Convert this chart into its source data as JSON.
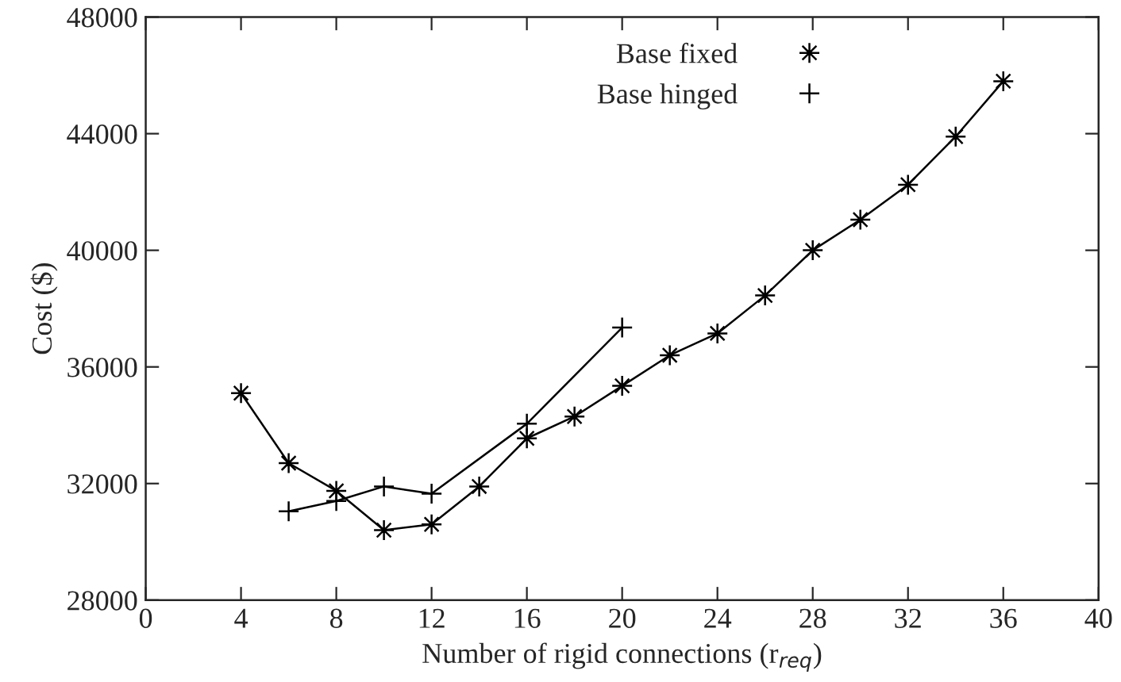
{
  "chart_data": {
    "type": "line",
    "xlabel": "Number of rigid connections (r$_{req}$)",
    "ylabel": "Cost ($)",
    "xlim": [
      0,
      40
    ],
    "xticks": [
      0,
      4,
      8,
      12,
      16,
      20,
      24,
      28,
      32,
      36,
      40
    ],
    "ylim": [
      28000,
      48000
    ],
    "yticks": [
      28000,
      32000,
      36000,
      40000,
      44000,
      48000
    ],
    "grid": false,
    "legend": "top right",
    "series": [
      {
        "name": "Base fixed",
        "color": "#000000",
        "marker": "star",
        "x": [
          4,
          6,
          8,
          10,
          12,
          14,
          16,
          18,
          20,
          22,
          24,
          26,
          28,
          30,
          32,
          34,
          36
        ],
        "values": [
          35100,
          32700,
          31750,
          30400,
          30600,
          31900,
          33550,
          34300,
          35350,
          36400,
          37150,
          38450,
          40000,
          41050,
          42250,
          43900,
          45800
        ]
      },
      {
        "name": "Base hinged",
        "color": "#000000",
        "marker": "cross",
        "x": [
          6,
          8,
          10,
          12,
          16,
          20
        ],
        "values": [
          31050,
          31400,
          31900,
          31650,
          34050,
          37350
        ]
      }
    ]
  }
}
